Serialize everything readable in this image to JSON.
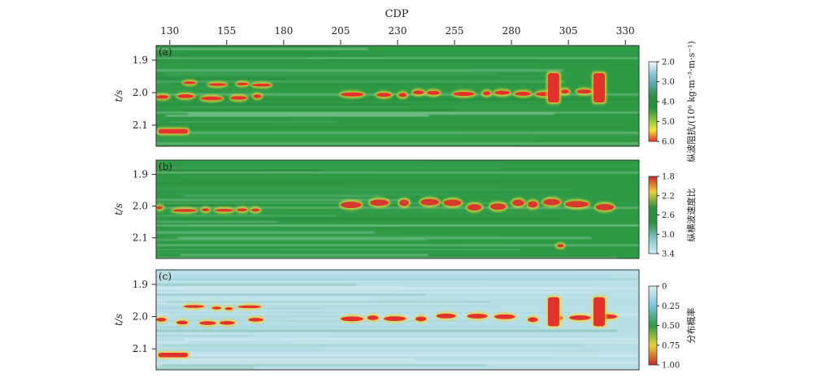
{
  "chart_data": {
    "type": "heatmap",
    "title": "",
    "x_axis_label": "CDP",
    "x_ticks": [
      130,
      155,
      180,
      205,
      230,
      255,
      280,
      305,
      330
    ],
    "x_range": [
      124,
      336
    ],
    "panels": [
      {
        "id": "a",
        "label": "(a)",
        "y_axis_label": "t/s",
        "y_ticks": [
          "1.9",
          "2.0",
          "2.1"
        ],
        "y_range": [
          1.855,
          2.165
        ],
        "colorbar_label": "纵波阻抗/(10⁶ kg·m⁻³·m·s⁻¹)",
        "colorbar_ticks": [
          "2.0",
          "3.0",
          "4.0",
          "5.0",
          "6.0"
        ],
        "colorbar_colors": [
          "#f4faf9",
          "#8fc9d6",
          "#5aa6a8",
          "#2d9040",
          "#23913a",
          "#7dc03d",
          "#f2e43a",
          "#e8322a"
        ],
        "background": "#2f9a45",
        "anomalies": [
          {
            "cdp": [
              136,
              169
            ],
            "t": [
              1.967,
              1.978
            ],
            "level": "high"
          },
          {
            "cdp": [
              124,
              172
            ],
            "t": [
              2.008,
              2.022
            ],
            "level": "high"
          },
          {
            "cdp": [
              125,
              138
            ],
            "t": [
              2.112,
              2.126
            ],
            "level": "high"
          },
          {
            "cdp": [
              205,
              318
            ],
            "t": [
              1.995,
              2.01
            ],
            "level": "high"
          },
          {
            "cdp": [
              296,
              301
            ],
            "t": [
              1.94,
              2.03
            ],
            "level": "high"
          },
          {
            "cdp": [
              316,
              321
            ],
            "t": [
              1.94,
              2.03
            ],
            "level": "high"
          }
        ]
      },
      {
        "id": "b",
        "label": "(b)",
        "y_axis_label": "t/s",
        "y_ticks": [
          "1.9",
          "2.0",
          "2.1"
        ],
        "y_range": [
          1.855,
          2.165
        ],
        "colorbar_label": "纵横波速度比",
        "colorbar_ticks": [
          "1.8",
          "2.2",
          "2.6",
          "3.0",
          "3.4"
        ],
        "colorbar_colors": [
          "#c8262a",
          "#f0d03a",
          "#2d9040",
          "#2d9040",
          "#7fc5c8",
          "#cfeef0"
        ],
        "background": "#2f9a45",
        "anomalies": [
          {
            "cdp": [
              124,
              170
            ],
            "t": [
              2.003,
              2.015
            ],
            "level": "low"
          },
          {
            "cdp": [
              205,
              320
            ],
            "t": [
              1.985,
              2.008
            ],
            "level": "low"
          },
          {
            "cdp": [
              300,
              303
            ],
            "t": [
              2.12,
              2.13
            ],
            "level": "low"
          }
        ]
      },
      {
        "id": "c",
        "label": "(c)",
        "y_axis_label": "t/s",
        "y_ticks": [
          "1.9",
          "2.0",
          "2.1"
        ],
        "y_range": [
          1.855,
          2.165
        ],
        "colorbar_label": "分布概率",
        "colorbar_ticks": [
          "0",
          "0.25",
          "0.50",
          "0.75",
          "1.00"
        ],
        "colorbar_colors": [
          "#dcf0f2",
          "#79c4da",
          "#2f9a45",
          "#e6d23a",
          "#c8262a"
        ],
        "background": "#b9dfe6",
        "anomalies": [
          {
            "cdp": [
              136,
              169
            ],
            "t": [
              1.967,
              1.978
            ],
            "level": "high"
          },
          {
            "cdp": [
              124,
              172
            ],
            "t": [
              2.008,
              2.022
            ],
            "level": "high"
          },
          {
            "cdp": [
              125,
              138
            ],
            "t": [
              2.112,
              2.126
            ],
            "level": "high"
          },
          {
            "cdp": [
              205,
              318
            ],
            "t": [
              1.995,
              2.012
            ],
            "level": "high"
          },
          {
            "cdp": [
              296,
              301
            ],
            "t": [
              1.94,
              2.03
            ],
            "level": "high"
          },
          {
            "cdp": [
              316,
              321
            ],
            "t": [
              1.94,
              2.03
            ],
            "level": "high"
          }
        ]
      }
    ]
  }
}
